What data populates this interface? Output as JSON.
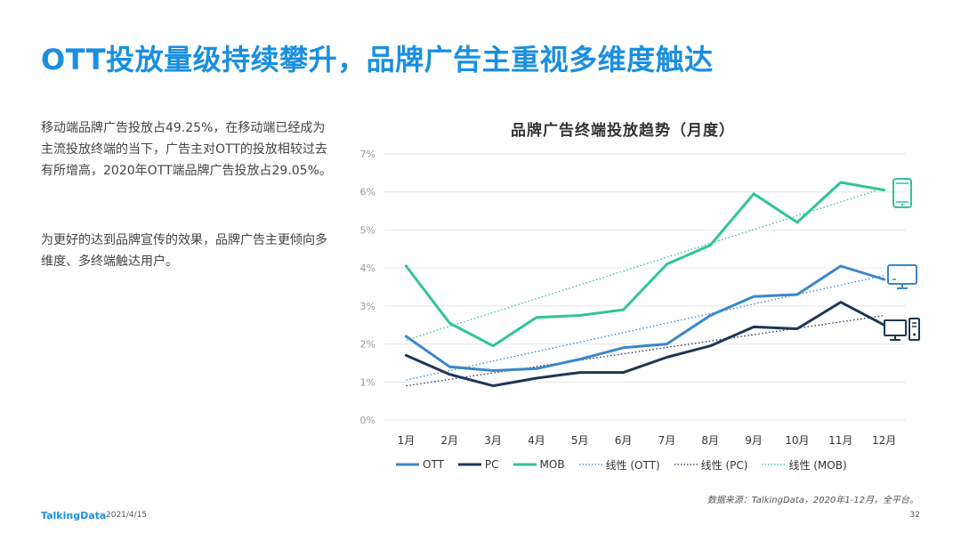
{
  "header": {
    "title": "OTT投放量级持续攀升，品牌广告主重视多维度触达"
  },
  "body": {
    "paragraph1": "移动端品牌广告投放占49.25%，在移动端已经成为主流投放终端的当下，广告主对OTT的投放相较过去有所增高，2020年OTT端品牌广告投放占29.05%。",
    "paragraph2": "为更好的达到品牌宣传的效果，品牌广告主更倾向多维度、多终端触达用户。"
  },
  "footer": {
    "source": "数据来源：TalkingData，2020年1-12月，全平台。",
    "brand": "TalkingData",
    "date": "2021/4/15",
    "page": "32"
  },
  "colors": {
    "ott": "#3b86cc",
    "pc": "#1f3656",
    "mob": "#2fc49a",
    "grid": "#e6e6e6",
    "title": "#1a8fe0"
  },
  "icons": {
    "mob": "smartphone-icon",
    "ott": "tv-monitor-icon",
    "pc": "desktop-pc-icon"
  },
  "chart_data": {
    "type": "line",
    "title": "品牌广告终端投放趋势（月度）",
    "categories": [
      "1月",
      "2月",
      "3月",
      "4月",
      "5月",
      "6月",
      "7月",
      "8月",
      "9月",
      "10月",
      "11月",
      "12月"
    ],
    "yticks": [
      "0%",
      "1%",
      "2%",
      "3%",
      "4%",
      "5%",
      "6%",
      "7%"
    ],
    "ylim": [
      0,
      7
    ],
    "grid": true,
    "legend_position": "bottom",
    "series": [
      {
        "name": "OTT",
        "key": "ott",
        "values": [
          2.2,
          1.4,
          1.3,
          1.35,
          1.6,
          1.9,
          2.0,
          2.75,
          3.25,
          3.3,
          4.05,
          3.7
        ]
      },
      {
        "name": "PC",
        "key": "pc",
        "values": [
          1.7,
          1.2,
          0.9,
          1.1,
          1.25,
          1.25,
          1.65,
          1.95,
          2.45,
          2.4,
          3.1,
          2.5
        ]
      },
      {
        "name": "MOB",
        "key": "mob",
        "values": [
          4.05,
          2.55,
          1.95,
          2.7,
          2.75,
          2.9,
          4.1,
          4.6,
          5.95,
          5.2,
          6.25,
          6.05
        ]
      }
    ],
    "trendlines": [
      {
        "name": "线性 (OTT)",
        "key": "ott",
        "start": 1.05,
        "end": 3.8
      },
      {
        "name": "线性 (PC)",
        "key": "pc",
        "start": 0.9,
        "end": 2.75
      },
      {
        "name": "线性 (MOB)",
        "key": "mob",
        "start": 2.1,
        "end": 6.1
      }
    ]
  }
}
